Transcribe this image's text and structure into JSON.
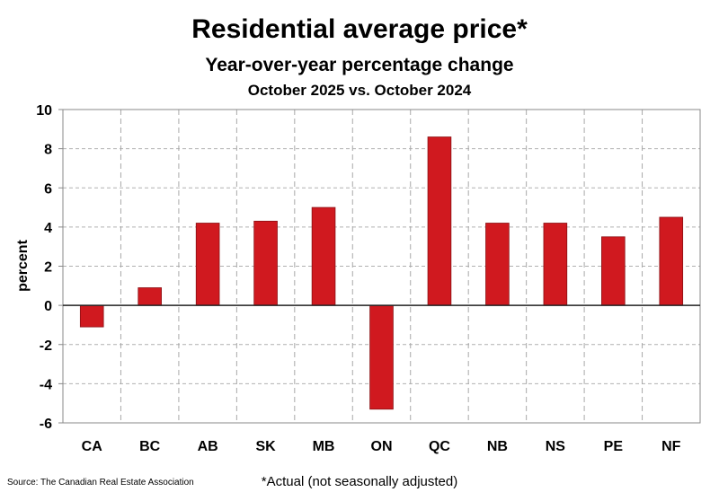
{
  "chart_data": {
    "type": "bar",
    "title": "Residential average price*",
    "subtitle": "Year-over-year percentage change",
    "subtitle2": "October 2025 vs. October 2024",
    "xlabel": "",
    "ylabel": "percent",
    "ylim": [
      -6,
      10
    ],
    "yticks": [
      10,
      8,
      6,
      4,
      2,
      0,
      -2,
      -4,
      -6
    ],
    "grid": true,
    "categories": [
      "CA",
      "BC",
      "AB",
      "SK",
      "MB",
      "ON",
      "QC",
      "NB",
      "NS",
      "PE",
      "NF"
    ],
    "values": [
      -1.1,
      0.9,
      4.2,
      4.3,
      5.0,
      -5.3,
      8.6,
      4.2,
      4.2,
      3.5,
      4.5
    ],
    "bar_color": "#d0191f",
    "source": "Source: The Canadian Real Estate Association",
    "footnote": "*Actual (not seasonally adjusted)"
  }
}
